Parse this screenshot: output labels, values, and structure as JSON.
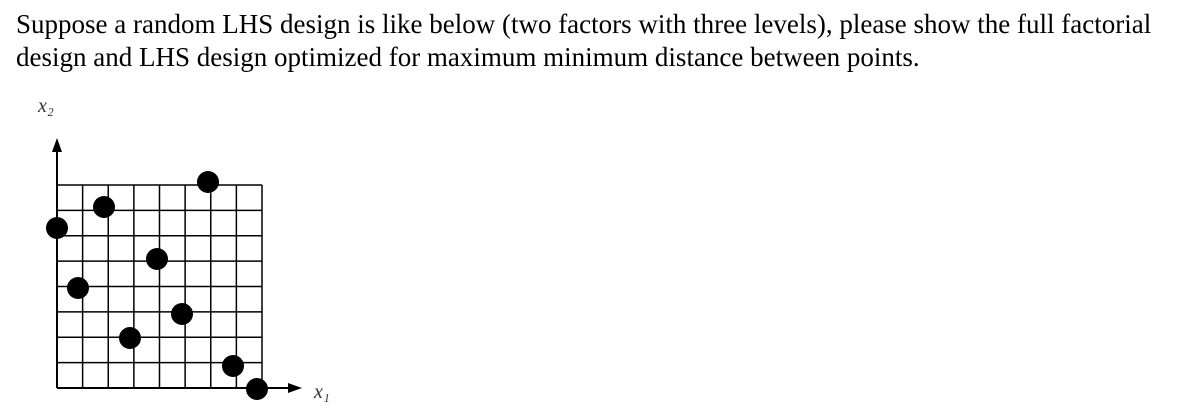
{
  "question": {
    "text": "Suppose a random LHS design is like below (two factors with three levels), please show the full factorial design and LHS design optimized for maximum minimum distance between points."
  },
  "figure": {
    "y_axis_label": "x₂",
    "x_axis_label": "x₁"
  }
}
